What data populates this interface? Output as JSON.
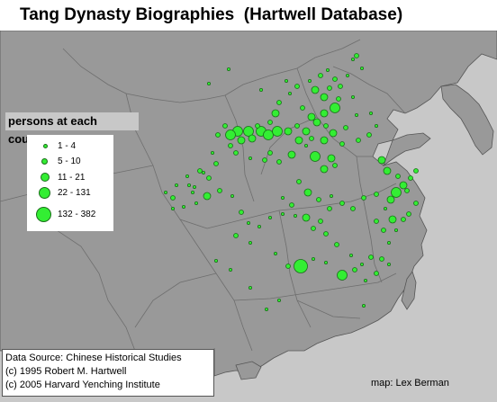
{
  "title": "Tang Dynasty Biographies  (Hartwell Database)",
  "colors": {
    "land": "#999999",
    "sea": "#c8c8c8",
    "boundary": "#6e6e6e",
    "marker_fill": "#33ee33",
    "marker_stroke": "#1a6f1a"
  },
  "legend": {
    "title": "persons at each county",
    "items": [
      {
        "label": "1 - 4",
        "size_class": 1
      },
      {
        "label": "5 - 10",
        "size_class": 2
      },
      {
        "label": "11 - 21",
        "size_class": 3
      },
      {
        "label": "22 - 131",
        "size_class": 4
      },
      {
        "label": "132 - 382",
        "size_class": 5
      }
    ]
  },
  "source": {
    "line1": "Data Source:  Chinese Historical Studies",
    "line2": "(c) 1995 Robert M. Hartwell",
    "line3": "(c) 2005 Harvard Yenching Institute"
  },
  "credit": "map:  Lex Berman"
}
